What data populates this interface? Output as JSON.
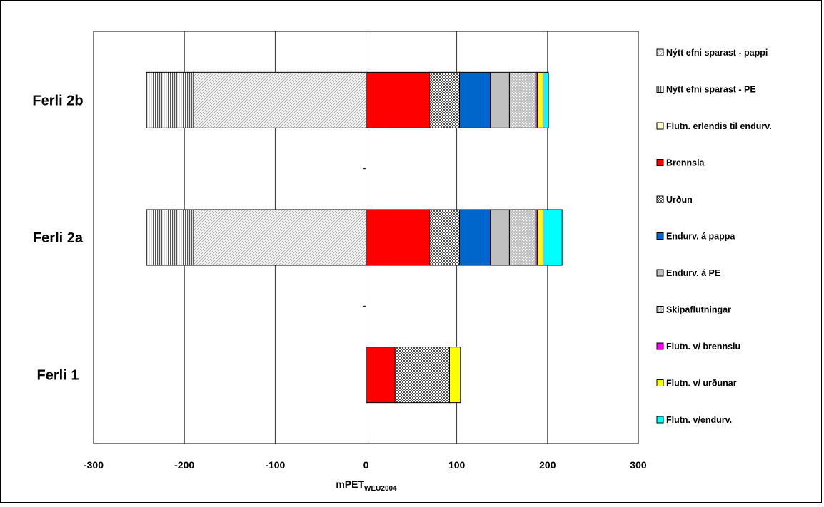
{
  "chart_data": {
    "type": "bar",
    "orientation": "horizontal",
    "stacked": true,
    "categories": [
      "Ferli 2b",
      "Ferli 2a",
      "Ferli 1"
    ],
    "xlabel": "mPET",
    "xlabel_sub": "WEU2004",
    "xlim": [
      -300,
      300
    ],
    "xticks": [
      -300,
      -200,
      -100,
      0,
      100,
      200,
      300
    ],
    "grid": "vertical",
    "legend_position": "right",
    "negative_series": [
      {
        "name": "Nýtt efni sparast - pappi",
        "pattern": "diag-light",
        "color": "#ffffff",
        "values": [
          -190,
          -190,
          0
        ]
      },
      {
        "name": "Nýtt efni sparast - PE",
        "pattern": "vlines",
        "color": "#ffffff",
        "values": [
          -52,
          -52,
          0
        ]
      }
    ],
    "series": [
      {
        "name": "Flutn. erlendis til endurv.",
        "pattern": "none",
        "color": "#ffffcc",
        "values": [
          0,
          0,
          0
        ]
      },
      {
        "name": "Brennsla",
        "pattern": "none",
        "color": "#ff0000",
        "values": [
          70,
          70,
          32
        ]
      },
      {
        "name": "Urðun",
        "pattern": "checker",
        "color": "#ffffff",
        "values": [
          33,
          33,
          60
        ]
      },
      {
        "name": "Endurv. á pappa",
        "pattern": "none",
        "color": "#0066cc",
        "values": [
          34,
          34,
          0
        ]
      },
      {
        "name": "Endurv. á PE",
        "pattern": "none",
        "color": "#c0c0c0",
        "values": [
          21,
          21,
          0
        ]
      },
      {
        "name": "Skipaflutningar",
        "pattern": "dots",
        "color": "#c0c0c0",
        "values": [
          29,
          29,
          0
        ]
      },
      {
        "name": "Flutn. v/ brennslu",
        "pattern": "none",
        "color": "#ff00ff",
        "values": [
          2,
          2,
          0
        ]
      },
      {
        "name": "Flutn. v/ urðunar",
        "pattern": "none",
        "color": "#ffff00",
        "values": [
          6,
          6,
          12
        ]
      },
      {
        "name": "Flutn. v/endurv.",
        "pattern": "none",
        "color": "#00ffff",
        "values": [
          6,
          21,
          0
        ]
      }
    ]
  }
}
